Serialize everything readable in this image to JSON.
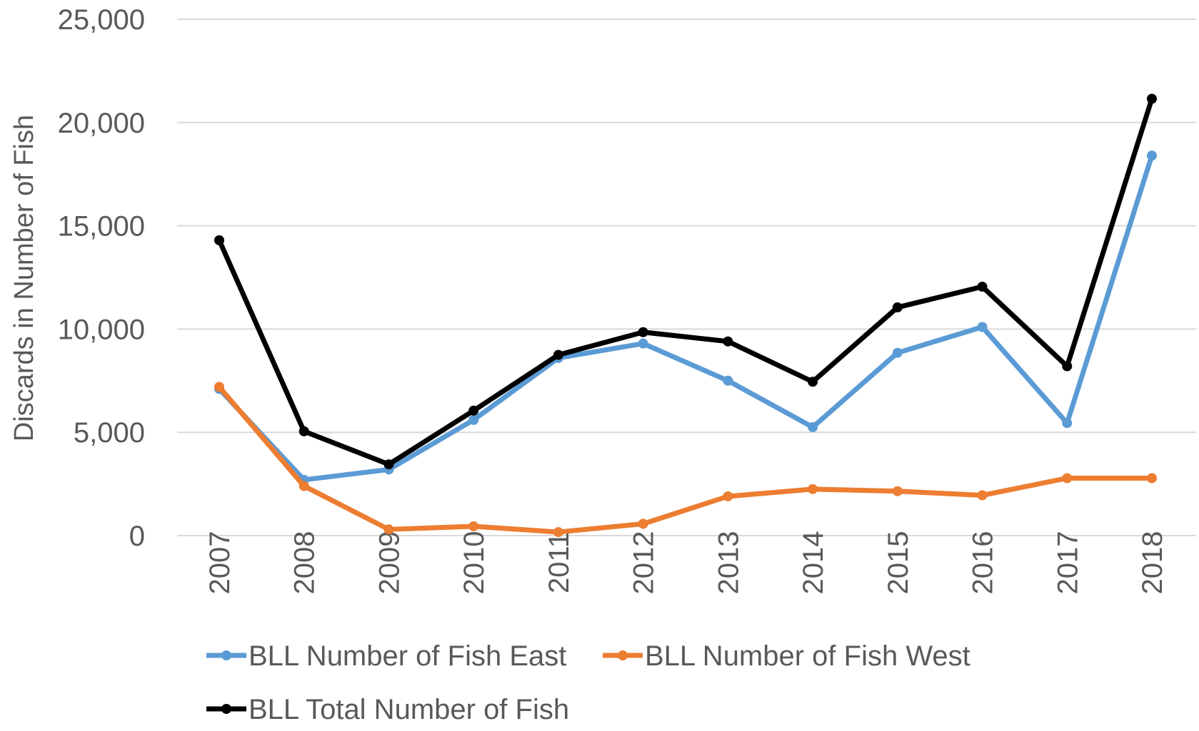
{
  "chart_data": {
    "type": "line",
    "title": "",
    "xlabel": "",
    "ylabel": "Discards in Number of Fish",
    "ylim": [
      0,
      25000
    ],
    "yticks": [
      0,
      5000,
      10000,
      15000,
      20000,
      25000
    ],
    "ytick_labels": [
      "0",
      "5,000",
      "10,000",
      "15,000",
      "20,000",
      "25,000"
    ],
    "grid": true,
    "legend_position": "bottom",
    "categories": [
      "2007",
      "2008",
      "2009",
      "2010",
      "2011",
      "2012",
      "2013",
      "2014",
      "2015",
      "2016",
      "2017",
      "2018"
    ],
    "series": [
      {
        "name": "BLL Number of Fish East",
        "color": "#5b9bd5",
        "values": [
          7100,
          2700,
          3200,
          5600,
          8600,
          9300,
          7500,
          5250,
          8850,
          10100,
          5450,
          18400
        ]
      },
      {
        "name": "BLL Number of Fish West",
        "color": "#ed7d31",
        "values": [
          7200,
          2400,
          300,
          450,
          170,
          570,
          1900,
          2250,
          2150,
          1950,
          2780,
          2780
        ]
      },
      {
        "name": "BLL Total Number of Fish",
        "color": "#000000",
        "values": [
          14300,
          5050,
          3450,
          6050,
          8750,
          9850,
          9400,
          7450,
          11050,
          12050,
          8200,
          21150
        ]
      }
    ]
  }
}
